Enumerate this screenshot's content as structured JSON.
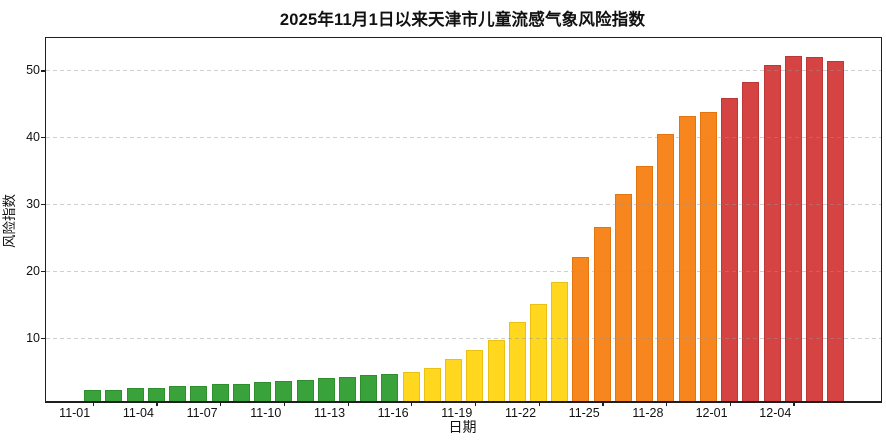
{
  "chart_data": {
    "type": "bar",
    "title": "2025年11月1日以来天津市儿童流感气象风险指数",
    "xlabel": "日期",
    "ylabel": "风险指数",
    "y_ticks": [
      10,
      20,
      30,
      40,
      50
    ],
    "ylim": [
      0.5,
      54.8
    ],
    "grid": "horizontal-dashed",
    "legend": "none",
    "x_tick_every": 3,
    "x_tick_labels": [
      "11-01",
      "11-04",
      "11-07",
      "11-10",
      "11-13",
      "11-16",
      "11-19",
      "11-22",
      "11-25",
      "11-28",
      "12-01",
      "12-04"
    ],
    "level_colors": {
      "green": "#3aa23a",
      "yellow": "#ffd71e",
      "orange": "#f8861f",
      "red": "#d54343"
    },
    "level_edge_colors": {
      "green": "#2f8f2f",
      "yellow": "#e9c112",
      "orange": "#e2750f",
      "red": "#bd3737"
    },
    "risk_level_ranges": [
      {
        "level": "green",
        "from": "11-01",
        "to": "11-15"
      },
      {
        "level": "yellow",
        "from": "11-16",
        "to": "11-23"
      },
      {
        "level": "orange",
        "from": "11-24",
        "to": "11-30"
      },
      {
        "level": "red",
        "from": "12-01",
        "to": "12-06"
      }
    ],
    "series": [
      {
        "date": "11-01",
        "value": 2.1,
        "level": "green"
      },
      {
        "date": "11-02",
        "value": 2.2,
        "level": "green"
      },
      {
        "date": "11-03",
        "value": 2.4,
        "level": "green"
      },
      {
        "date": "11-04",
        "value": 2.5,
        "level": "green"
      },
      {
        "date": "11-05",
        "value": 2.7,
        "level": "green"
      },
      {
        "date": "11-06",
        "value": 2.8,
        "level": "green"
      },
      {
        "date": "11-07",
        "value": 3.0,
        "level": "green"
      },
      {
        "date": "11-08",
        "value": 3.1,
        "level": "green"
      },
      {
        "date": "11-09",
        "value": 3.3,
        "level": "green"
      },
      {
        "date": "11-10",
        "value": 3.5,
        "level": "green"
      },
      {
        "date": "11-11",
        "value": 3.7,
        "level": "green"
      },
      {
        "date": "11-12",
        "value": 3.9,
        "level": "green"
      },
      {
        "date": "11-13",
        "value": 4.1,
        "level": "green"
      },
      {
        "date": "11-14",
        "value": 4.4,
        "level": "green"
      },
      {
        "date": "11-15",
        "value": 4.6,
        "level": "green"
      },
      {
        "date": "11-16",
        "value": 4.9,
        "level": "yellow"
      },
      {
        "date": "11-17",
        "value": 5.5,
        "level": "yellow"
      },
      {
        "date": "11-18",
        "value": 6.8,
        "level": "yellow"
      },
      {
        "date": "11-19",
        "value": 8.2,
        "level": "yellow"
      },
      {
        "date": "11-20",
        "value": 9.7,
        "level": "yellow"
      },
      {
        "date": "11-21",
        "value": 12.3,
        "level": "yellow"
      },
      {
        "date": "11-22",
        "value": 15.0,
        "level": "yellow"
      },
      {
        "date": "11-23",
        "value": 18.3,
        "level": "yellow"
      },
      {
        "date": "11-24",
        "value": 22.0,
        "level": "orange"
      },
      {
        "date": "11-25",
        "value": 26.5,
        "level": "orange"
      },
      {
        "date": "11-26",
        "value": 31.5,
        "level": "orange"
      },
      {
        "date": "11-27",
        "value": 35.7,
        "level": "orange"
      },
      {
        "date": "11-28",
        "value": 40.5,
        "level": "orange"
      },
      {
        "date": "11-29",
        "value": 43.1,
        "level": "orange"
      },
      {
        "date": "11-30",
        "value": 43.8,
        "level": "orange"
      },
      {
        "date": "12-01",
        "value": 45.8,
        "level": "red"
      },
      {
        "date": "12-02",
        "value": 48.2,
        "level": "red"
      },
      {
        "date": "12-03",
        "value": 50.8,
        "level": "red"
      },
      {
        "date": "12-04",
        "value": 52.2,
        "level": "red"
      },
      {
        "date": "12-05",
        "value": 52.0,
        "level": "red"
      },
      {
        "date": "12-06",
        "value": 51.4,
        "level": "red"
      }
    ]
  }
}
